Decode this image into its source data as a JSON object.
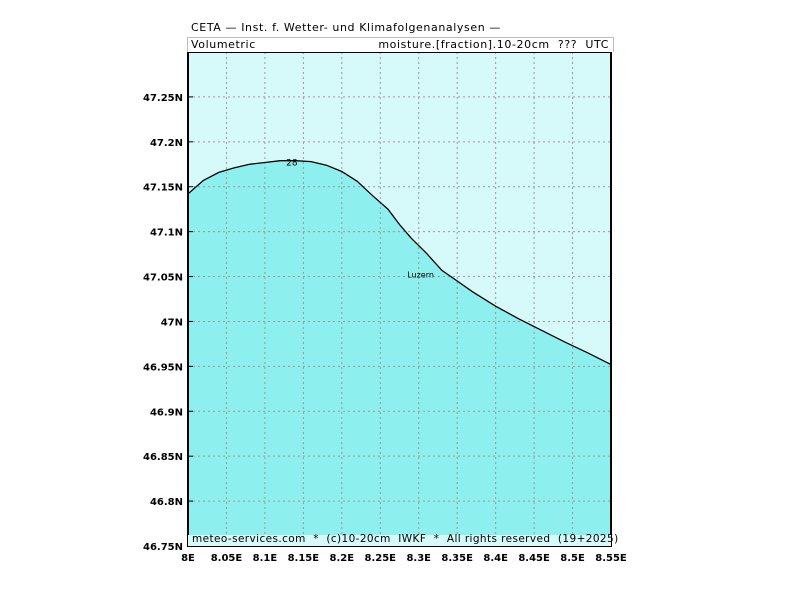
{
  "header": {
    "title": "CETA — Inst. f. Wetter- und Klimafolgenanalysen —",
    "subtitle_left": "Volumetric",
    "subtitle_right": "moisture.[fraction].10-20cm  ???  UTC"
  },
  "footer": {
    "copyright": "meteo-services.com  *  (c)10-20cm  IWKF  *  All rights reserved  (19+2025)"
  },
  "map": {
    "city_label": "Luzern",
    "city_lon": 8.285,
    "city_lat": 47.052,
    "contour_label": "28",
    "contour_label_lon": 8.135,
    "contour_label_lat": 47.177,
    "colors": {
      "low_fill": "#d6fafa",
      "high_fill": "#8eefef",
      "contour": "#000000",
      "grid": "#9a9a9a"
    }
  },
  "chart_data": {
    "type": "map",
    "x_ticks": [
      "8E",
      "8.05E",
      "8.1E",
      "8.15E",
      "8.2E",
      "8.25E",
      "8.3E",
      "8.35E",
      "8.4E",
      "8.45E",
      "8.5E",
      "8.55E"
    ],
    "x_values": [
      8.0,
      8.05,
      8.1,
      8.15,
      8.2,
      8.25,
      8.3,
      8.35,
      8.4,
      8.45,
      8.5,
      8.55
    ],
    "y_ticks": [
      "46.75N",
      "46.8N",
      "46.85N",
      "46.9N",
      "46.95N",
      "47N",
      "47.05N",
      "47.1N",
      "47.15N",
      "47.2N",
      "47.25N"
    ],
    "y_values": [
      46.75,
      46.8,
      46.85,
      46.9,
      46.95,
      47.0,
      47.05,
      47.1,
      47.15,
      47.2,
      47.25
    ],
    "xlim": [
      8.0,
      8.55
    ],
    "ylim": [
      46.75,
      47.3
    ],
    "contour_line": {
      "level": "28",
      "points": [
        [
          8.0,
          47.142
        ],
        [
          8.02,
          47.157
        ],
        [
          8.04,
          47.166
        ],
        [
          8.06,
          47.171
        ],
        [
          8.08,
          47.175
        ],
        [
          8.1,
          47.177
        ],
        [
          8.12,
          47.179
        ],
        [
          8.14,
          47.179
        ],
        [
          8.16,
          47.178
        ],
        [
          8.18,
          47.174
        ],
        [
          8.2,
          47.167
        ],
        [
          8.22,
          47.156
        ],
        [
          8.24,
          47.14
        ],
        [
          8.26,
          47.125
        ],
        [
          8.275,
          47.108
        ],
        [
          8.29,
          47.093
        ],
        [
          8.31,
          47.076
        ],
        [
          8.33,
          47.057
        ],
        [
          8.35,
          47.045
        ],
        [
          8.37,
          47.033
        ],
        [
          8.4,
          47.017
        ],
        [
          8.43,
          47.003
        ],
        [
          8.46,
          46.99
        ],
        [
          8.49,
          46.977
        ],
        [
          8.52,
          46.965
        ],
        [
          8.55,
          46.952
        ]
      ]
    }
  }
}
